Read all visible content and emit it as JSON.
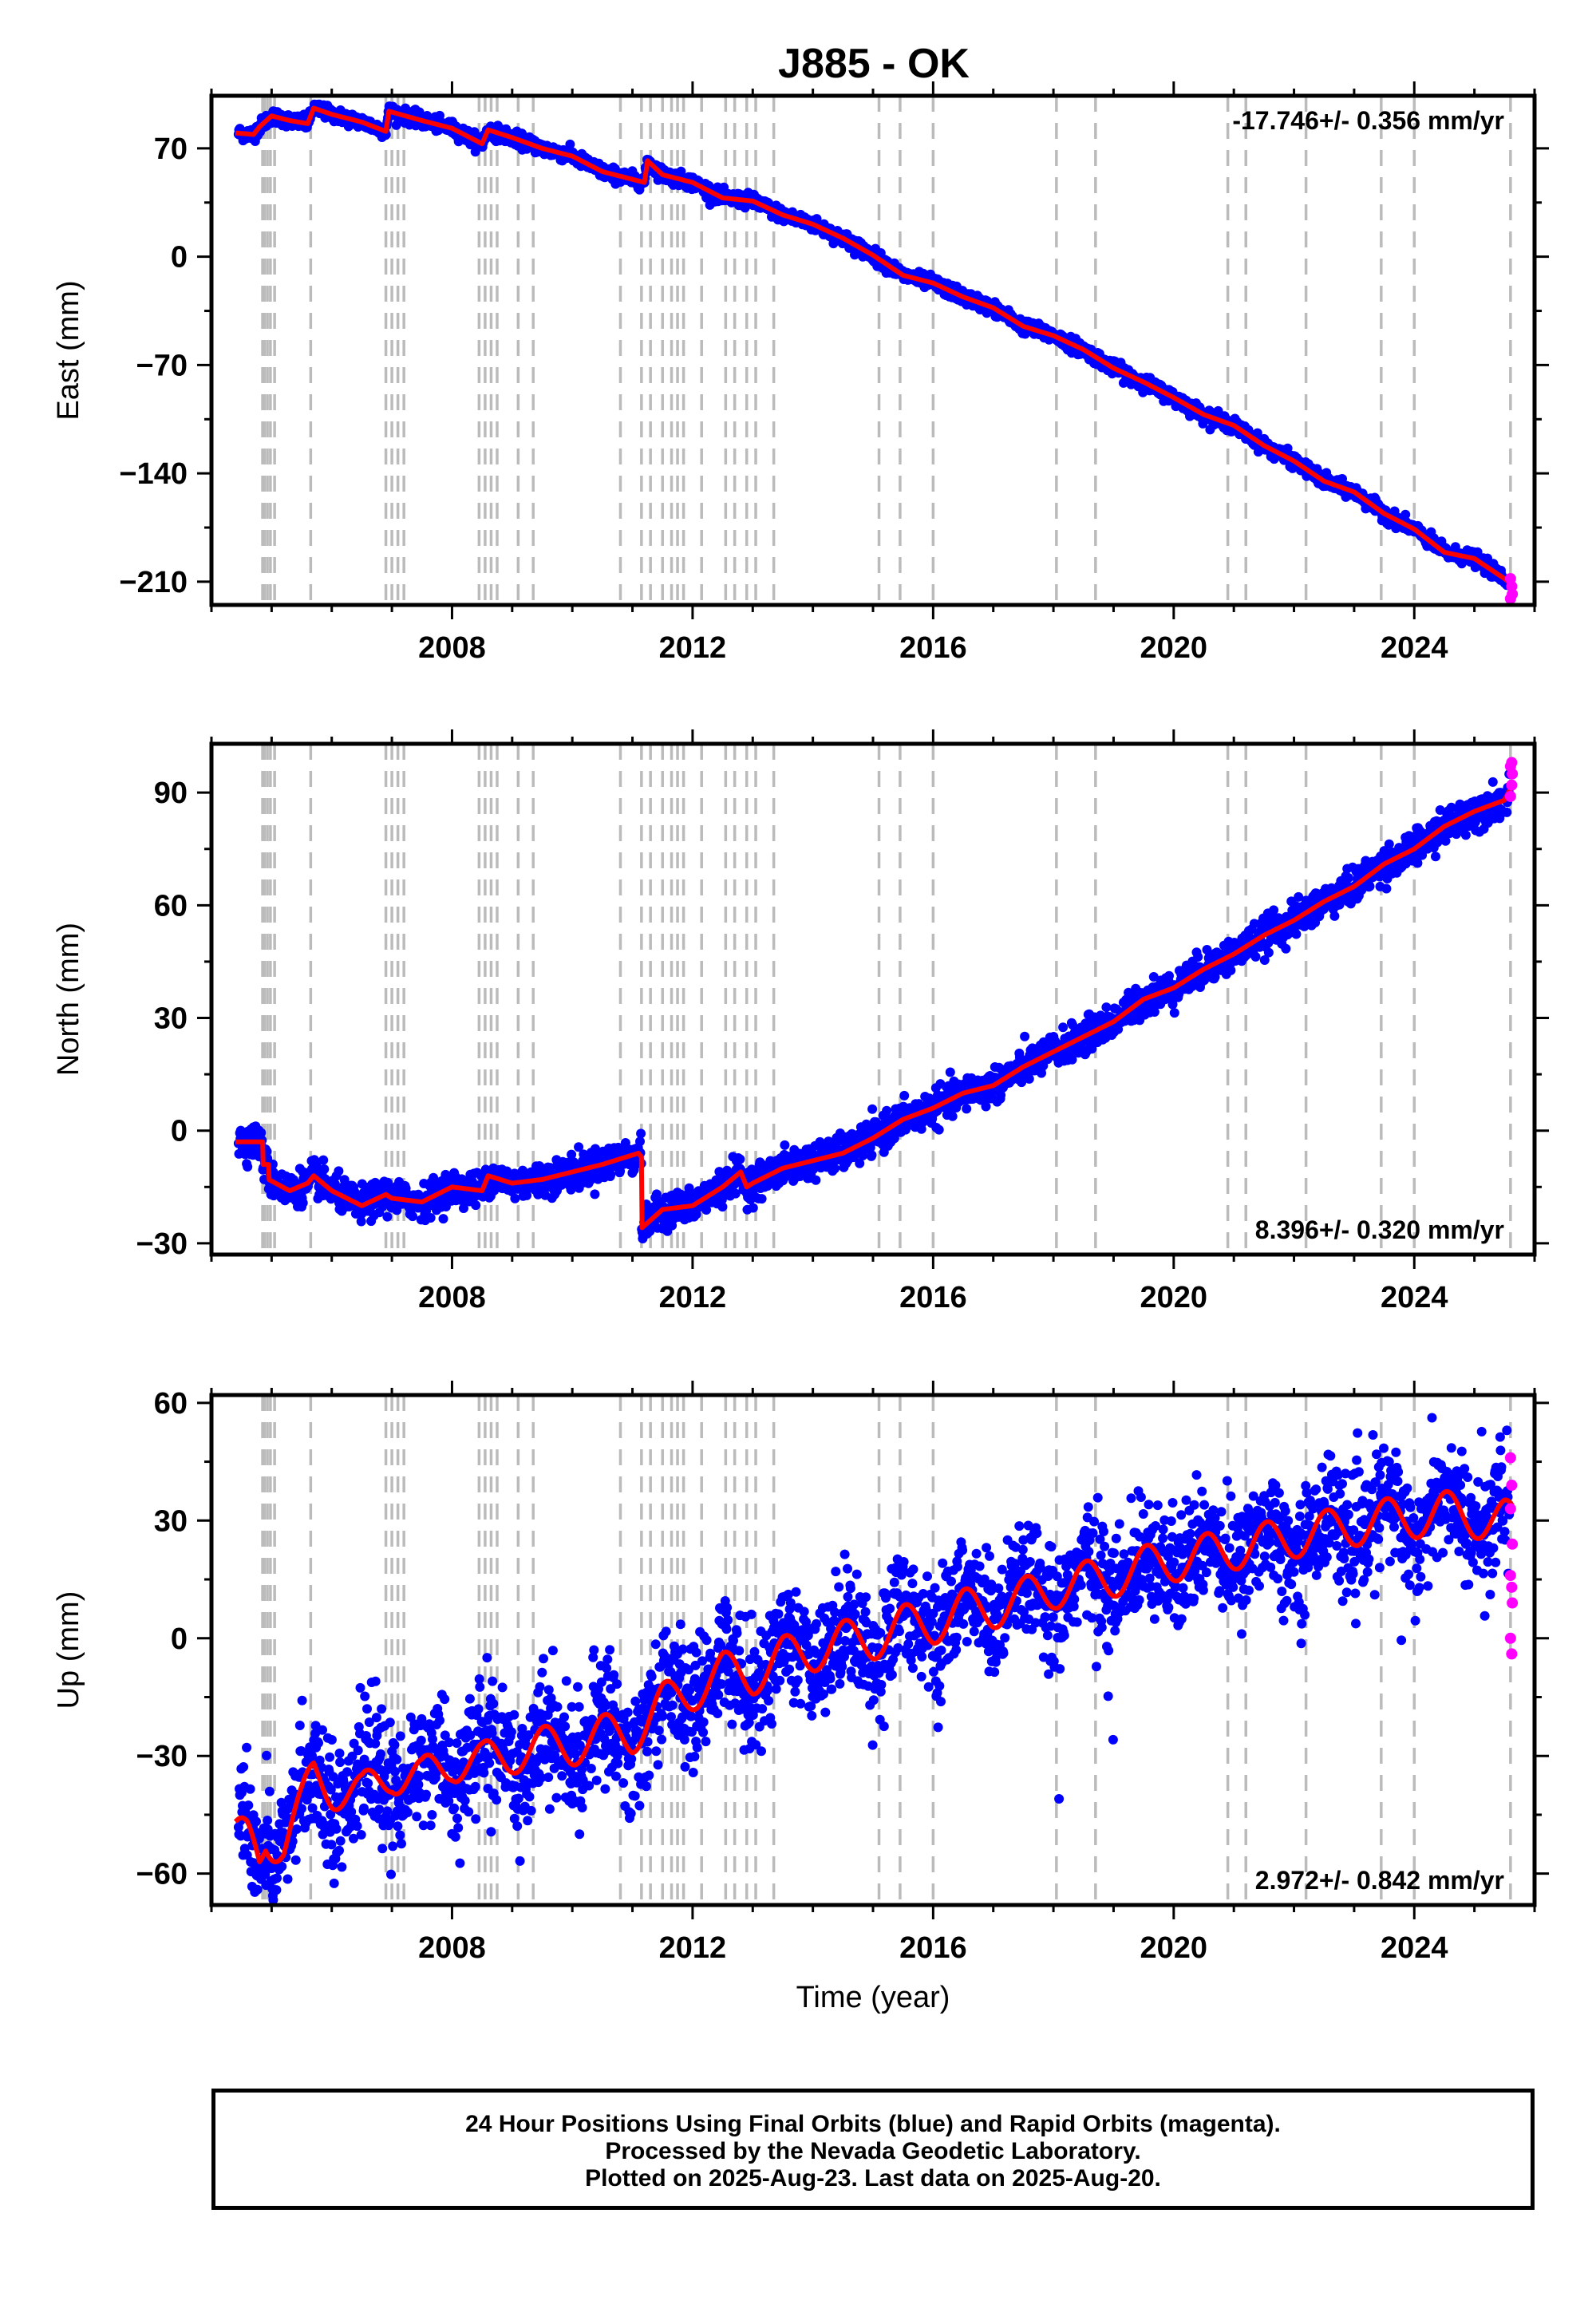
{
  "title": "J885 - OK",
  "colors": {
    "final_orbits": "#0000ff",
    "rapid_orbits": "#ff00ff",
    "model": "#ff0000",
    "event_lines": "#bbbbbb",
    "frame": "#000000"
  },
  "footer": {
    "line1": "24 Hour Positions Using Final Orbits (blue) and Rapid Orbits (magenta).",
    "line2": "Processed by the Nevada Geodetic Laboratory.",
    "line3": "Plotted on 2025-Aug-23. Last data on 2025-Aug-20."
  },
  "chart_data": [
    {
      "type": "scatter",
      "component": "East",
      "ylabel": "East (mm)",
      "xlabel": "",
      "rate_label": "-17.746+/- 0.356 mm/yr",
      "rate_position": "top-right",
      "xlim": [
        2004.0,
        2026.0
      ],
      "ylim": [
        -225,
        104
      ],
      "xticks": [
        2008,
        2012,
        2016,
        2020,
        2024
      ],
      "yticks": [
        -210,
        -140,
        -70,
        0,
        70
      ],
      "grid": false,
      "model_trend": [
        [
          2004.4,
          80
        ],
        [
          2004.7,
          79
        ],
        [
          2004.8,
          84
        ],
        [
          2005.0,
          91
        ],
        [
          2005.3,
          88
        ],
        [
          2005.6,
          86
        ],
        [
          2005.7,
          96
        ],
        [
          2006.0,
          92
        ],
        [
          2006.5,
          87
        ],
        [
          2006.9,
          81
        ],
        [
          2006.95,
          94
        ],
        [
          2007.5,
          88
        ],
        [
          2008.0,
          83
        ],
        [
          2008.5,
          73
        ],
        [
          2008.6,
          82
        ],
        [
          2009.0,
          77
        ],
        [
          2009.5,
          70
        ],
        [
          2010.0,
          65
        ],
        [
          2010.5,
          55
        ],
        [
          2010.8,
          52
        ],
        [
          2011.0,
          50
        ],
        [
          2011.2,
          48
        ],
        [
          2011.25,
          62
        ],
        [
          2011.5,
          53
        ],
        [
          2012.0,
          48
        ],
        [
          2012.5,
          38
        ],
        [
          2013.0,
          36
        ],
        [
          2013.5,
          27
        ],
        [
          2014.0,
          21
        ],
        [
          2014.5,
          12
        ],
        [
          2015.0,
          1
        ],
        [
          2015.5,
          -12
        ],
        [
          2016.0,
          -17
        ],
        [
          2016.5,
          -26
        ],
        [
          2017.0,
          -33
        ],
        [
          2017.5,
          -45
        ],
        [
          2018.0,
          -51
        ],
        [
          2018.5,
          -60
        ],
        [
          2019.0,
          -72
        ],
        [
          2019.5,
          -81
        ],
        [
          2020.0,
          -91
        ],
        [
          2020.5,
          -102
        ],
        [
          2021.0,
          -109
        ],
        [
          2021.5,
          -122
        ],
        [
          2022.0,
          -132
        ],
        [
          2022.5,
          -145
        ],
        [
          2023.0,
          -152
        ],
        [
          2023.5,
          -166
        ],
        [
          2024.0,
          -176
        ],
        [
          2024.5,
          -191
        ],
        [
          2025.0,
          -195
        ],
        [
          2025.5,
          -208
        ],
        [
          2025.63,
          -212
        ]
      ],
      "rapid_points": [
        [
          2025.6,
          -208
        ],
        [
          2025.62,
          -213
        ],
        [
          2025.63,
          -218
        ],
        [
          2025.6,
          -221
        ]
      ],
      "event_lines": [
        2004.85,
        2004.88,
        2004.93,
        2004.98,
        2005.05,
        2005.65,
        2006.9,
        2007.0,
        2007.1,
        2007.2,
        2008.45,
        2008.55,
        2008.65,
        2008.75,
        2009.1,
        2009.35,
        2010.8,
        2011.15,
        2011.3,
        2011.5,
        2011.65,
        2011.75,
        2011.85,
        2012.15,
        2012.55,
        2012.7,
        2012.9,
        2013.05,
        2013.35,
        2015.1,
        2015.45,
        2016.0,
        2018.05,
        2018.7,
        2020.9,
        2021.2,
        2022.2,
        2023.45,
        2024.0,
        2025.6
      ]
    },
    {
      "type": "scatter",
      "component": "North",
      "ylabel": "North (mm)",
      "xlabel": "",
      "rate_label": "8.396+/- 0.320 mm/yr",
      "rate_position": "bottom-right",
      "xlim": [
        2004.0,
        2026.0
      ],
      "ylim": [
        -33,
        103
      ],
      "xticks": [
        2008,
        2012,
        2016,
        2020,
        2024
      ],
      "yticks": [
        -30,
        0,
        30,
        60,
        90
      ],
      "grid": false,
      "model_trend": [
        [
          2004.4,
          -3
        ],
        [
          2004.85,
          -3
        ],
        [
          2004.85,
          -9
        ],
        [
          2004.95,
          -9
        ],
        [
          2004.95,
          -13
        ],
        [
          2005.3,
          -16
        ],
        [
          2005.6,
          -14
        ],
        [
          2005.7,
          -12
        ],
        [
          2006.0,
          -16
        ],
        [
          2006.5,
          -20
        ],
        [
          2006.9,
          -17
        ],
        [
          2007.0,
          -18
        ],
        [
          2007.5,
          -19
        ],
        [
          2008.0,
          -15
        ],
        [
          2008.5,
          -16
        ],
        [
          2008.6,
          -12
        ],
        [
          2009.0,
          -14
        ],
        [
          2009.5,
          -13
        ],
        [
          2010.0,
          -11
        ],
        [
          2010.5,
          -9
        ],
        [
          2011.1,
          -6
        ],
        [
          2011.15,
          -7
        ],
        [
          2011.15,
          -26
        ],
        [
          2011.5,
          -21
        ],
        [
          2012.0,
          -20
        ],
        [
          2012.5,
          -15
        ],
        [
          2012.8,
          -11
        ],
        [
          2012.9,
          -15
        ],
        [
          2013.0,
          -14
        ],
        [
          2013.5,
          -10
        ],
        [
          2014.0,
          -8
        ],
        [
          2014.5,
          -6
        ],
        [
          2015.0,
          -2
        ],
        [
          2015.5,
          3
        ],
        [
          2016.0,
          6
        ],
        [
          2016.5,
          10
        ],
        [
          2017.0,
          12
        ],
        [
          2017.5,
          17
        ],
        [
          2018.0,
          21
        ],
        [
          2018.5,
          25
        ],
        [
          2019.0,
          29
        ],
        [
          2019.5,
          35
        ],
        [
          2020.0,
          38
        ],
        [
          2020.5,
          43
        ],
        [
          2021.0,
          47
        ],
        [
          2021.5,
          52
        ],
        [
          2022.0,
          56
        ],
        [
          2022.5,
          61
        ],
        [
          2023.0,
          65
        ],
        [
          2023.5,
          71
        ],
        [
          2024.0,
          75
        ],
        [
          2024.5,
          81
        ],
        [
          2025.0,
          85
        ],
        [
          2025.5,
          88
        ],
        [
          2025.63,
          92
        ]
      ],
      "rapid_points": [
        [
          2025.6,
          89
        ],
        [
          2025.62,
          92
        ],
        [
          2025.63,
          95
        ],
        [
          2025.6,
          97
        ],
        [
          2025.62,
          98
        ]
      ],
      "event_lines": [
        2004.85,
        2004.88,
        2004.93,
        2004.98,
        2005.05,
        2005.65,
        2006.9,
        2007.0,
        2007.1,
        2007.2,
        2008.45,
        2008.55,
        2008.65,
        2008.75,
        2009.1,
        2009.35,
        2010.8,
        2011.15,
        2011.3,
        2011.5,
        2011.65,
        2011.75,
        2011.85,
        2012.15,
        2012.55,
        2012.7,
        2012.9,
        2013.05,
        2013.35,
        2015.1,
        2015.45,
        2016.0,
        2018.05,
        2018.7,
        2020.9,
        2021.2,
        2022.2,
        2023.45,
        2024.0,
        2025.6
      ]
    },
    {
      "type": "scatter",
      "component": "Up",
      "ylabel": "Up (mm)",
      "xlabel": "Time (year)",
      "rate_label": "2.972+/- 0.842 mm/yr",
      "rate_position": "bottom-right",
      "xlim": [
        2004.0,
        2026.0
      ],
      "ylim": [
        -68,
        62
      ],
      "xticks": [
        2008,
        2012,
        2016,
        2020,
        2024
      ],
      "yticks": [
        -60,
        -30,
        0,
        30,
        60
      ],
      "grid": false,
      "model_trend": [
        [
          2004.4,
          -50
        ],
        [
          2004.6,
          -52
        ],
        [
          2004.8,
          -57
        ],
        [
          2004.9,
          -51
        ],
        [
          2005.2,
          -52
        ],
        [
          2005.5,
          -43
        ],
        [
          2005.7,
          -35
        ],
        [
          2006.0,
          -38
        ],
        [
          2006.5,
          -40
        ],
        [
          2007.0,
          -34
        ],
        [
          2007.5,
          -36
        ],
        [
          2008.0,
          -31
        ],
        [
          2008.5,
          -32
        ],
        [
          2009.0,
          -29
        ],
        [
          2009.5,
          -28
        ],
        [
          2010.0,
          -27
        ],
        [
          2010.5,
          -25
        ],
        [
          2011.0,
          -24
        ],
        [
          2011.5,
          -17
        ],
        [
          2012.0,
          -13
        ],
        [
          2012.5,
          -9
        ],
        [
          2013.0,
          -9
        ],
        [
          2013.5,
          -5
        ],
        [
          2014.0,
          -3
        ],
        [
          2014.5,
          -1
        ],
        [
          2015.0,
          0
        ],
        [
          2015.5,
          3
        ],
        [
          2016.0,
          4
        ],
        [
          2016.5,
          7
        ],
        [
          2017.0,
          8
        ],
        [
          2017.5,
          10
        ],
        [
          2018.0,
          13
        ],
        [
          2018.5,
          14
        ],
        [
          2019.0,
          16
        ],
        [
          2019.5,
          18
        ],
        [
          2020.0,
          20
        ],
        [
          2020.5,
          21
        ],
        [
          2021.0,
          23
        ],
        [
          2021.5,
          24
        ],
        [
          2022.0,
          26
        ],
        [
          2022.5,
          27
        ],
        [
          2023.0,
          29
        ],
        [
          2023.5,
          30
        ],
        [
          2024.0,
          31
        ],
        [
          2024.5,
          32
        ],
        [
          2025.0,
          31
        ],
        [
          2025.5,
          30
        ],
        [
          2025.63,
          29
        ]
      ],
      "seasonal_amplitude_mm": 5.5,
      "rapid_points": [
        [
          2025.6,
          46
        ],
        [
          2025.62,
          39
        ],
        [
          2025.6,
          33
        ],
        [
          2025.63,
          24
        ],
        [
          2025.6,
          16
        ],
        [
          2025.62,
          13
        ],
        [
          2025.63,
          9
        ],
        [
          2025.6,
          0
        ],
        [
          2025.62,
          -4
        ]
      ],
      "event_lines": [
        2004.85,
        2004.88,
        2004.93,
        2004.98,
        2005.05,
        2005.65,
        2006.9,
        2007.0,
        2007.1,
        2007.2,
        2008.45,
        2008.55,
        2008.65,
        2008.75,
        2009.1,
        2009.35,
        2010.8,
        2011.15,
        2011.3,
        2011.5,
        2011.65,
        2011.75,
        2011.85,
        2012.15,
        2012.55,
        2012.7,
        2012.9,
        2013.05,
        2013.35,
        2015.1,
        2015.45,
        2016.0,
        2018.05,
        2018.7,
        2020.9,
        2021.2,
        2022.2,
        2023.45,
        2024.0,
        2025.6
      ]
    }
  ]
}
